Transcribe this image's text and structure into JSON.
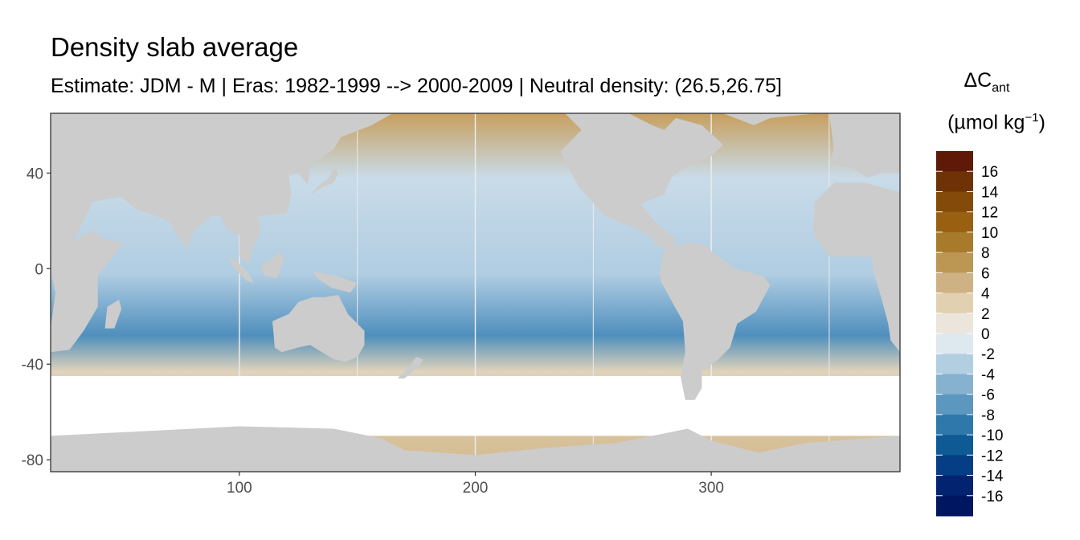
{
  "chart_data": {
    "type": "heatmap",
    "title": "Density slab average",
    "subtitle": "Estimate: JDM - M | Eras: 1982-1999 --> 2000-2009 | Neutral density: (26.5,26.75]",
    "xlabel": "",
    "ylabel": "",
    "xlim": [
      20,
      380
    ],
    "ylim": [
      -85,
      65
    ],
    "x_ticks": [
      100,
      200,
      300
    ],
    "y_ticks": [
      40,
      0,
      -40,
      -80
    ],
    "x_tick_labels": [
      "100",
      "200",
      "300"
    ],
    "y_tick_labels": [
      "40",
      "0",
      "-40",
      "-80"
    ],
    "grid": true,
    "land_color": "#cccccc",
    "missing_color": "#ffffff",
    "legend": {
      "title_main": "ΔC",
      "title_sub": "ant",
      "unit_prefix": "(µmol kg",
      "unit_sup": "−1",
      "unit_suffix": ")",
      "position": "right",
      "bins_top_to_bottom": [
        {
          "color": "#5e1a06"
        },
        {
          "color": "#6e3206"
        },
        {
          "color": "#844a0a"
        },
        {
          "color": "#996012"
        },
        {
          "color": "#a87a2c"
        },
        {
          "color": "#bb9753"
        },
        {
          "color": "#cfb283"
        },
        {
          "color": "#e2d1b0"
        },
        {
          "color": "#ebe5dc"
        },
        {
          "color": "#dde8ef"
        },
        {
          "color": "#b2cfe2"
        },
        {
          "color": "#86b2d0"
        },
        {
          "color": "#5b97be"
        },
        {
          "color": "#2f78aa"
        },
        {
          "color": "#0e5a95"
        },
        {
          "color": "#053e84"
        },
        {
          "color": "#022470"
        },
        {
          "color": "#011660"
        }
      ],
      "labels": [
        "16",
        "14",
        "12",
        "10",
        "8",
        "6",
        "4",
        "2",
        "0",
        "-2",
        "-4",
        "-6",
        "-8",
        "-10",
        "-12",
        "-14",
        "-16"
      ]
    },
    "land_masses": [
      {
        "name": "North America",
        "lon": [
          20,
          380
        ],
        "outline": [
          [
            238,
            65
          ],
          [
            245,
            58
          ],
          [
            236,
            49
          ],
          [
            244,
            34
          ],
          [
            255,
            22
          ],
          [
            265,
            18
          ],
          [
            272,
            15
          ],
          [
            278,
            9
          ],
          [
            283,
            8
          ],
          [
            285,
            12
          ],
          [
            276,
            20
          ],
          [
            270,
            27
          ],
          [
            280,
            31
          ],
          [
            283,
            38
          ],
          [
            290,
            43
          ],
          [
            300,
            47
          ],
          [
            305,
            52
          ],
          [
            296,
            60
          ],
          [
            285,
            63
          ],
          [
            280,
            58
          ],
          [
            275,
            60
          ],
          [
            265,
            65
          ]
        ]
      },
      {
        "name": "Greenland",
        "outline": [
          [
            305,
            65
          ],
          [
            318,
            60
          ],
          [
            325,
            63
          ],
          [
            345,
            65
          ]
        ]
      },
      {
        "name": "Eurasia West",
        "outline": [
          [
            20,
            65
          ],
          [
            20,
            8
          ],
          [
            30,
            12
          ],
          [
            38,
            28
          ],
          [
            50,
            30
          ],
          [
            56,
            25
          ],
          [
            62,
            23
          ],
          [
            70,
            20
          ],
          [
            75,
            12
          ],
          [
            78,
            8
          ],
          [
            80,
            15
          ],
          [
            88,
            22
          ],
          [
            92,
            22
          ],
          [
            95,
            16
          ],
          [
            100,
            14
          ],
          [
            100,
            5
          ],
          [
            104,
            2
          ],
          [
            106,
            10
          ],
          [
            109,
            15
          ],
          [
            108,
            22
          ],
          [
            120,
            23
          ],
          [
            122,
            31
          ],
          [
            121,
            39
          ],
          [
            125,
            40
          ],
          [
            129,
            35
          ],
          [
            130,
            43
          ],
          [
            140,
            50
          ],
          [
            143,
            55
          ],
          [
            156,
            60
          ],
          [
            165,
            65
          ]
        ]
      },
      {
        "name": "Eurasia East Edge",
        "outline": [
          [
            350,
            65
          ],
          [
            352,
            50
          ],
          [
            350,
            44
          ],
          [
            360,
            42
          ],
          [
            366,
            38
          ],
          [
            372,
            40
          ],
          [
            380,
            40
          ],
          [
            380,
            65
          ]
        ]
      },
      {
        "name": "Africa",
        "outline": [
          [
            20,
            -35
          ],
          [
            20,
            -25
          ],
          [
            22,
            -10
          ],
          [
            20,
            0
          ],
          [
            20,
            8
          ],
          [
            30,
            12
          ],
          [
            38,
            16
          ],
          [
            43,
            12
          ],
          [
            51,
            11
          ],
          [
            40,
            -3
          ],
          [
            40,
            -16
          ],
          [
            34,
            -26
          ],
          [
            28,
            -34
          ]
        ]
      },
      {
        "name": "Africa Wrap",
        "outline": [
          [
            343,
            15
          ],
          [
            350,
            5
          ],
          [
            357,
            5
          ],
          [
            368,
            5
          ],
          [
            369,
            -2
          ],
          [
            372,
            -12
          ],
          [
            375,
            -23
          ],
          [
            376,
            -30
          ],
          [
            380,
            -35
          ],
          [
            380,
            32
          ],
          [
            365,
            36
          ],
          [
            352,
            36
          ],
          [
            344,
            28
          ]
        ]
      },
      {
        "name": "Madagascar",
        "outline": [
          [
            43,
            -25
          ],
          [
            44,
            -16
          ],
          [
            49,
            -13
          ],
          [
            50,
            -17
          ],
          [
            47,
            -25
          ]
        ]
      },
      {
        "name": "South America",
        "outline": [
          [
            280,
            8
          ],
          [
            278,
            -2
          ],
          [
            279,
            -6
          ],
          [
            284,
            -15
          ],
          [
            288,
            -22
          ],
          [
            289,
            -35
          ],
          [
            287,
            -45
          ],
          [
            289,
            -55
          ],
          [
            293,
            -55
          ],
          [
            296,
            -50
          ],
          [
            296,
            -43
          ],
          [
            303,
            -38
          ],
          [
            308,
            -33
          ],
          [
            311,
            -23
          ],
          [
            319,
            -18
          ],
          [
            325,
            -7
          ],
          [
            322,
            -3
          ],
          [
            310,
            0
          ],
          [
            303,
            5
          ],
          [
            297,
            10
          ],
          [
            290,
            11
          ]
        ]
      },
      {
        "name": "Australia",
        "outline": [
          [
            114,
            -22
          ],
          [
            115,
            -33
          ],
          [
            118,
            -35
          ],
          [
            125,
            -33
          ],
          [
            130,
            -32
          ],
          [
            135,
            -35
          ],
          [
            140,
            -38
          ],
          [
            145,
            -39
          ],
          [
            150,
            -37
          ],
          [
            153,
            -32
          ],
          [
            153,
            -26
          ],
          [
            146,
            -19
          ],
          [
            142,
            -11
          ],
          [
            136,
            -12
          ],
          [
            131,
            -12
          ],
          [
            125,
            -14
          ],
          [
            121,
            -19
          ]
        ]
      },
      {
        "name": "New Guinea",
        "outline": [
          [
            131,
            -1
          ],
          [
            141,
            -3
          ],
          [
            150,
            -6
          ],
          [
            147,
            -10
          ],
          [
            139,
            -8
          ],
          [
            133,
            -4
          ]
        ]
      },
      {
        "name": "Borneo",
        "outline": [
          [
            109,
            1
          ],
          [
            112,
            3
          ],
          [
            117,
            7
          ],
          [
            119,
            4
          ],
          [
            116,
            -4
          ],
          [
            111,
            -3
          ]
        ]
      },
      {
        "name": "Sumatra",
        "outline": [
          [
            95,
            5
          ],
          [
            99,
            3
          ],
          [
            104,
            -2
          ],
          [
            106,
            -6
          ],
          [
            103,
            -5
          ],
          [
            98,
            0
          ]
        ]
      },
      {
        "name": "Japan",
        "outline": [
          [
            130,
            31
          ],
          [
            135,
            34
          ],
          [
            140,
            36
          ],
          [
            142,
            40
          ],
          [
            140,
            42
          ],
          [
            138,
            38
          ],
          [
            134,
            35
          ]
        ]
      },
      {
        "name": "New Zealand",
        "outline": [
          [
            167,
            -46
          ],
          [
            172,
            -41
          ],
          [
            175,
            -37
          ],
          [
            178,
            -38
          ],
          [
            176,
            -41
          ],
          [
            170,
            -46
          ]
        ]
      },
      {
        "name": "Antarctica",
        "outline": [
          [
            20,
            -70
          ],
          [
            60,
            -68
          ],
          [
            100,
            -66
          ],
          [
            140,
            -67
          ],
          [
            160,
            -71
          ],
          [
            170,
            -76
          ],
          [
            200,
            -78
          ],
          [
            230,
            -75
          ],
          [
            260,
            -73
          ],
          [
            290,
            -67
          ],
          [
            300,
            -72
          ],
          [
            320,
            -77
          ],
          [
            340,
            -73
          ],
          [
            380,
            -70
          ],
          [
            380,
            -85
          ],
          [
            20,
            -85
          ]
        ]
      }
    ],
    "no_data_bands": [
      {
        "name": "southern-ocean-gap",
        "lat_range": [
          -70,
          -45
        ]
      }
    ]
  }
}
